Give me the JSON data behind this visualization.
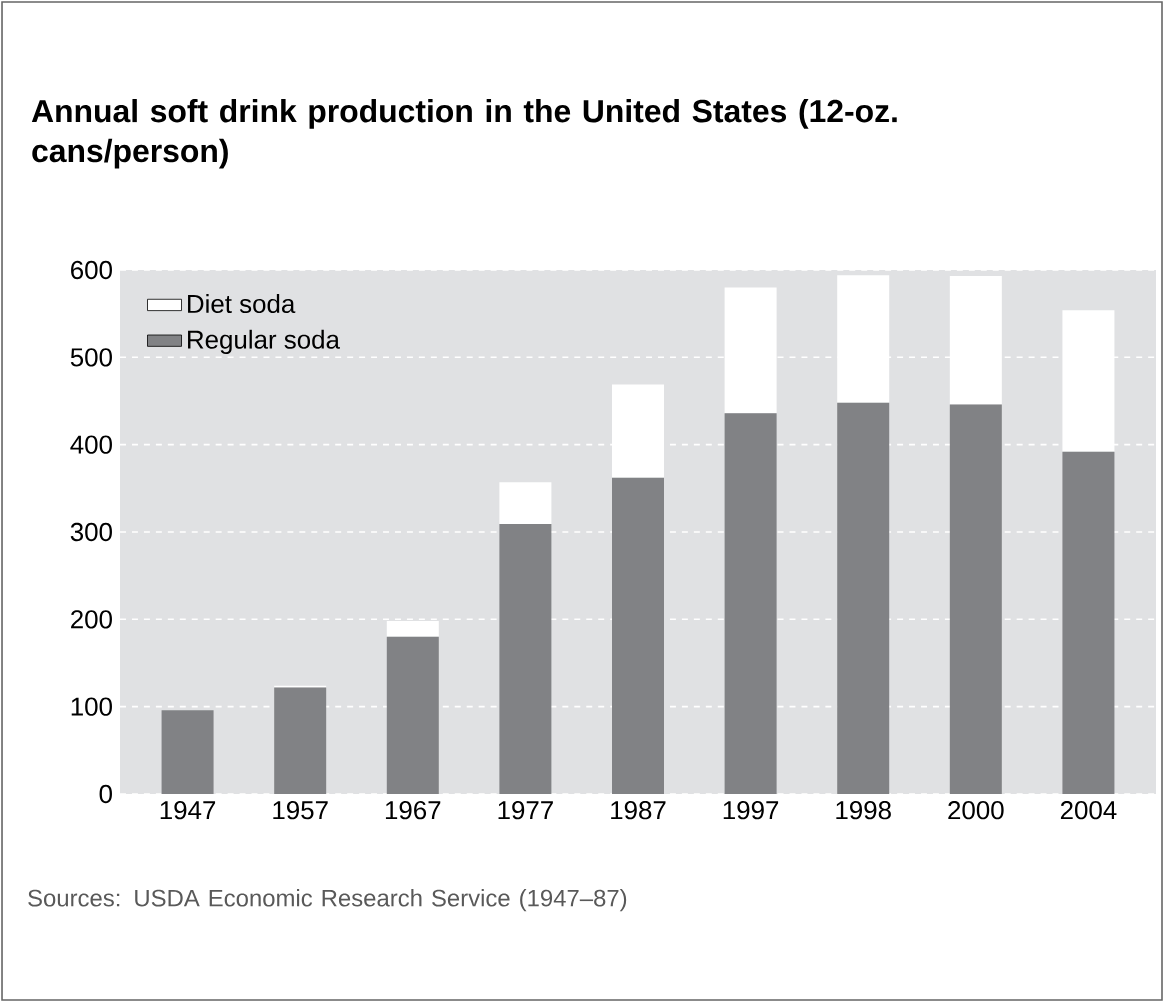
{
  "chart_data": {
    "type": "bar",
    "title": "Annual soft drink production in the United States (12-oz. cans/person)",
    "categories": [
      "1947",
      "1957",
      "1967",
      "1977",
      "1987",
      "1997",
      "1998",
      "2000",
      "2004"
    ],
    "series": [
      {
        "name": "Regular soda",
        "color": "#818285",
        "values": [
          96,
          122,
          180,
          309,
          362,
          436,
          448,
          446,
          392
        ]
      },
      {
        "name": "Diet soda",
        "color": "#ffffff",
        "values": [
          0,
          2,
          18,
          48,
          107,
          144,
          146,
          147,
          162
        ]
      }
    ],
    "stacked": true,
    "ylim": [
      0,
      600
    ],
    "yticks": [
      0,
      100,
      200,
      300,
      400,
      500,
      600
    ],
    "grid": "y",
    "legend": "top left",
    "annotations": [
      "Sources: USDA Economic Research Service (1947–87)"
    ]
  }
}
